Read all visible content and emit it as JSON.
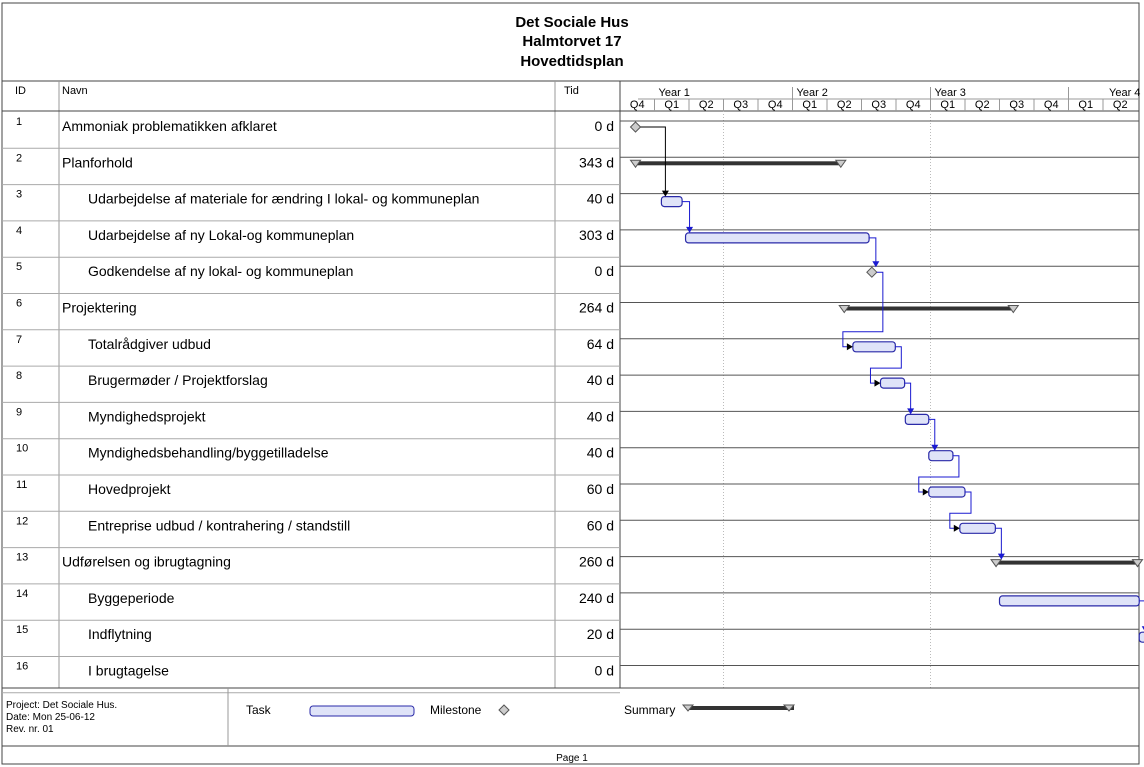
{
  "header": {
    "title_lines": [
      "Det Sociale Hus",
      "Halmtorvet 17",
      "Hovedtidsplan"
    ]
  },
  "columns": {
    "id": "ID",
    "name": "Navn",
    "duration": "Tid"
  },
  "timescale": {
    "years": [
      "Year 1",
      "Year 2",
      "Year 3",
      "Year 4"
    ],
    "quarters": [
      "Q4",
      "Q1",
      "Q2",
      "Q3",
      "Q4",
      "Q1",
      "Q2",
      "Q3",
      "Q4",
      "Q1",
      "Q2",
      "Q3",
      "Q4",
      "Q1",
      "Q2"
    ]
  },
  "chart_data": {
    "type": "gantt",
    "title": "Hovedtidsplan",
    "time_unit": "quarters from start of Year 0 Q4",
    "x_range": [
      0,
      15
    ],
    "tasks": [
      {
        "id": "1",
        "name": "Ammoniak problematikken afklaret",
        "duration": "0 d",
        "kind": "milestone",
        "indent": 0,
        "start": 0.45,
        "end": 0.45
      },
      {
        "id": "2",
        "name": "Planforhold",
        "duration": "343 d",
        "kind": "summary",
        "indent": 0,
        "start": 0.45,
        "end": 6.4
      },
      {
        "id": "3",
        "name": "Udarbejdelse af materiale for ændring I lokal- og kommuneplan",
        "duration": "40 d",
        "kind": "task",
        "indent": 1,
        "start": 1.2,
        "end": 1.8
      },
      {
        "id": "4",
        "name": "Udarbejdelse af ny  Lokal-og kommuneplan",
        "duration": "303 d",
        "kind": "task",
        "indent": 1,
        "start": 1.9,
        "end": 7.22
      },
      {
        "id": "5",
        "name": "Godkendelse af ny lokal- og kommuneplan",
        "duration": "0 d",
        "kind": "milestone",
        "indent": 1,
        "start": 7.3,
        "end": 7.3
      },
      {
        "id": "6",
        "name": "Projektering",
        "duration": "264 d",
        "kind": "summary",
        "indent": 0,
        "start": 6.5,
        "end": 11.4
      },
      {
        "id": "7",
        "name": "Totalrådgiver udbud",
        "duration": "64 d",
        "kind": "task",
        "indent": 1,
        "start": 6.75,
        "end": 7.98
      },
      {
        "id": "8",
        "name": "Brugermøder / Projektforslag",
        "duration": "40 d",
        "kind": "task",
        "indent": 1,
        "start": 7.55,
        "end": 8.25
      },
      {
        "id": "9",
        "name": "Myndighedsprojekt",
        "duration": "40 d",
        "kind": "task",
        "indent": 1,
        "start": 8.27,
        "end": 8.95
      },
      {
        "id": "10",
        "name": "Myndighedsbehandling/byggetilladelse",
        "duration": "40 d",
        "kind": "task",
        "indent": 1,
        "start": 8.95,
        "end": 9.65
      },
      {
        "id": "11",
        "name": "Hovedprojekt",
        "duration": "60 d",
        "kind": "task",
        "indent": 1,
        "start": 8.95,
        "end": 10.0
      },
      {
        "id": "12",
        "name": "Entreprise udbud / kontrahering / standstill",
        "duration": "60 d",
        "kind": "task",
        "indent": 1,
        "start": 9.85,
        "end": 10.88
      },
      {
        "id": "13",
        "name": "Udførelsen og ibrugtagning",
        "duration": "260 d",
        "kind": "summary",
        "indent": 0,
        "start": 10.9,
        "end": 15.0
      },
      {
        "id": "14",
        "name": "Byggeperiode",
        "duration": "240 d",
        "kind": "task",
        "indent": 1,
        "start": 11.0,
        "end": 15.05
      },
      {
        "id": "15",
        "name": "Indflytning",
        "duration": "20 d",
        "kind": "task",
        "indent": 1,
        "start": 15.05,
        "end": 15.45
      },
      {
        "id": "16",
        "name": "I brugtagelse",
        "duration": "0 d",
        "kind": "milestone",
        "indent": 1,
        "start": 15.4,
        "end": 15.4
      }
    ],
    "links": [
      [
        1,
        3
      ],
      [
        3,
        4
      ],
      [
        4,
        5
      ],
      [
        5,
        7
      ],
      [
        7,
        8
      ],
      [
        8,
        9
      ],
      [
        9,
        10
      ],
      [
        10,
        11
      ],
      [
        11,
        12
      ],
      [
        12,
        13
      ],
      [
        14,
        15
      ],
      [
        15,
        16
      ]
    ],
    "summary_arrows": [
      [
        12,
        13
      ]
    ]
  },
  "footer": {
    "info": [
      "Project: Det Sociale Hus.",
      "Date: Mon 25-06-12",
      "Rev. nr. 01"
    ],
    "legend": {
      "task": "Task",
      "milestone": "Milestone",
      "summary": "Summary"
    },
    "page": "Page 1"
  },
  "colors": {
    "task_fill": "#dfe3f8",
    "task_border": "#2a2aa8",
    "link": "#1a1ad0",
    "summary": "#333333",
    "grid": "#999999",
    "milestone": "#cccccc"
  }
}
